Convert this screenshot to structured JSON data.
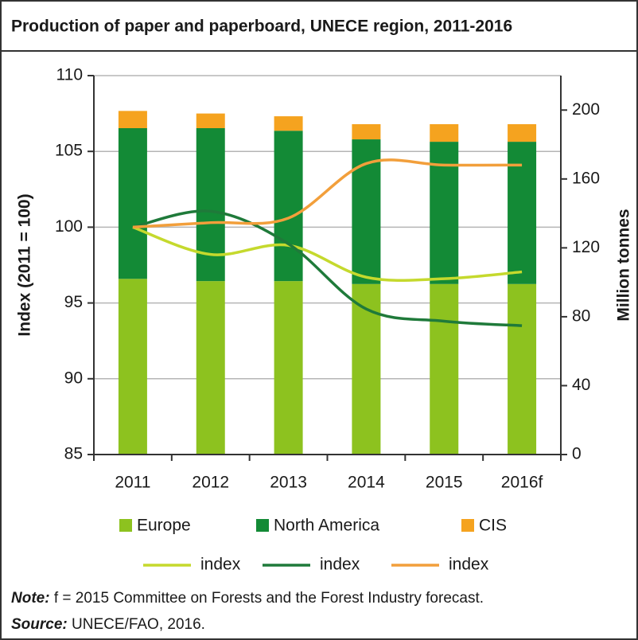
{
  "chart_data": {
    "type": "combo",
    "title": "Production of paper and paperboard, UNECE region, 2011-2016",
    "ylabel": "Index (2011 = 100)",
    "y2label": "Million tonnes",
    "categories": [
      "2011",
      "2012",
      "2013",
      "2014",
      "2015",
      "2016f"
    ],
    "ylim": [
      85,
      110
    ],
    "yticks": [
      85,
      90,
      95,
      100,
      105,
      110
    ],
    "y2lim": [
      0,
      220
    ],
    "y2ticks": [
      0,
      40,
      80,
      120,
      160,
      200
    ],
    "grid": true,
    "series": [
      {
        "name": "Europe",
        "type": "bar",
        "axis": "y2",
        "color": "#8dc21f",
        "values": [
          102,
          100.7,
          100.7,
          99,
          99,
          99
        ]
      },
      {
        "name": "North America",
        "type": "bar",
        "axis": "y2",
        "color": "#138a36",
        "values": [
          87.5,
          88.8,
          87.3,
          84,
          82.6,
          82.6
        ]
      },
      {
        "name": "CIS",
        "type": "bar",
        "axis": "y2",
        "color": "#f5a31f",
        "values": [
          10,
          8.5,
          8.4,
          8.8,
          10.2,
          10.2
        ]
      },
      {
        "name": "index",
        "type": "line",
        "axis": "y",
        "color": "#c5d92d",
        "values": [
          100,
          98.2,
          98.8,
          96.7,
          96.6,
          97.05
        ]
      },
      {
        "name": "index",
        "type": "line",
        "axis": "y",
        "color": "#1f7a3a",
        "values": [
          100,
          101.05,
          98.9,
          94.6,
          93.8,
          93.5
        ]
      },
      {
        "name": "index",
        "type": "line",
        "axis": "y",
        "color": "#f29f3b",
        "values": [
          100,
          100.3,
          100.6,
          104.2,
          104.1,
          104.1
        ]
      }
    ],
    "note_label": "Note:",
    "note_text": "f = 2015 Committee on Forests and the Forest Industry forecast.",
    "source_label": "Source:",
    "source_text": "UNECE/FAO, 2016."
  }
}
